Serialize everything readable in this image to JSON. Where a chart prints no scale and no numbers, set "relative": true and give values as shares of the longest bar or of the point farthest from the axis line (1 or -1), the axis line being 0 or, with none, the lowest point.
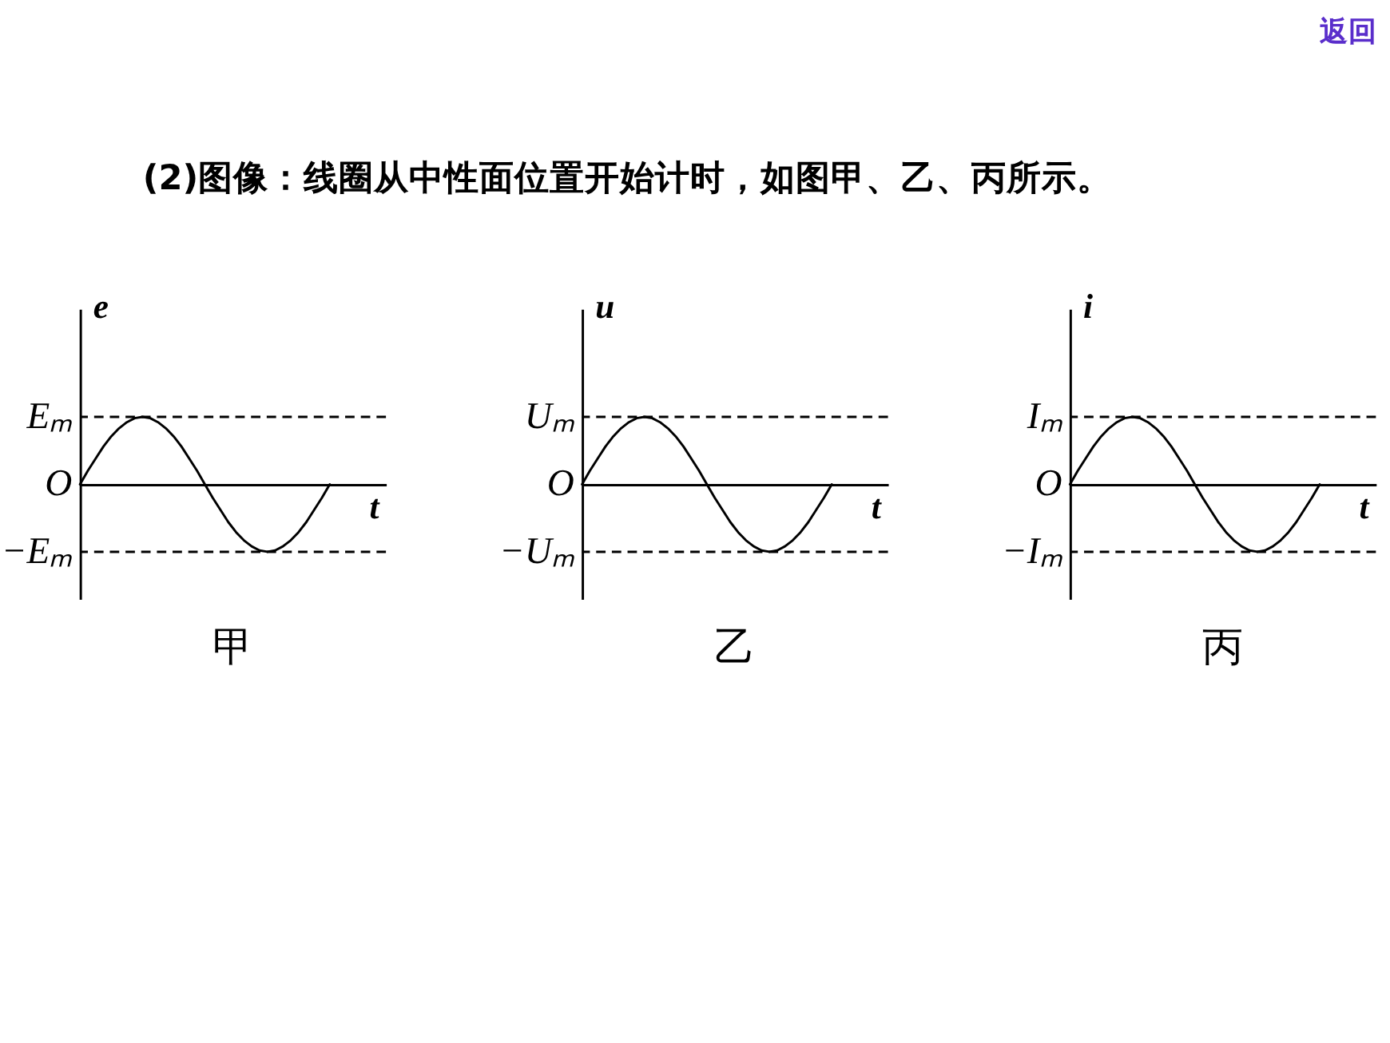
{
  "chart_data": [
    {
      "type": "line",
      "title": "甲",
      "ylabel": "e",
      "xlabel": "t",
      "relative": true,
      "annotations": [
        "(2)图像：线圈从中性面位置开始计时，如图甲、乙、丙所示。",
        "返回",
        "O"
      ],
      "categories": [
        null,
        null,
        null,
        null,
        null,
        null,
        null,
        null,
        null,
        null,
        null,
        null,
        null,
        null,
        null,
        null,
        null,
        null,
        null,
        null,
        null,
        null,
        null,
        null,
        null,
        null,
        null,
        null,
        null,
        null,
        null,
        null,
        null
      ],
      "series": [
        {
          "color": "#000000",
          "values": [
            0,
            0.2,
            0.38,
            0.56,
            0.71,
            0.83,
            0.92,
            0.98,
            1,
            0.98,
            0.92,
            0.83,
            0.71,
            0.56,
            0.38,
            0.2,
            0,
            -0.2,
            -0.38,
            -0.56,
            -0.71,
            -0.83,
            -0.92,
            -0.98,
            -1,
            -0.98,
            -0.92,
            -0.83,
            -0.71,
            -0.56,
            -0.38,
            -0.2,
            0
          ]
        }
      ],
      "ref_lines": [
        {
          "axis": "y",
          "value": 1,
          "label": "Eₘ",
          "line_style": "dashed",
          "color": "#000000"
        },
        {
          "axis": "y",
          "value": -1,
          "label": "−Eₘ",
          "line_style": "dashed",
          "color": "#000000"
        }
      ],
      "line_style": "solid"
    },
    {
      "type": "line",
      "title": "乙",
      "ylabel": "u",
      "xlabel": "t",
      "relative": true,
      "annotations": [
        "O"
      ],
      "categories": [
        null,
        null,
        null,
        null,
        null,
        null,
        null,
        null,
        null,
        null,
        null,
        null,
        null,
        null,
        null,
        null,
        null,
        null,
        null,
        null,
        null,
        null,
        null,
        null,
        null,
        null,
        null,
        null,
        null,
        null,
        null,
        null,
        null
      ],
      "series": [
        {
          "color": "#000000",
          "values": [
            0,
            0.2,
            0.38,
            0.56,
            0.71,
            0.83,
            0.92,
            0.98,
            1,
            0.98,
            0.92,
            0.83,
            0.71,
            0.56,
            0.38,
            0.2,
            0,
            -0.2,
            -0.38,
            -0.56,
            -0.71,
            -0.83,
            -0.92,
            -0.98,
            -1,
            -0.98,
            -0.92,
            -0.83,
            -0.71,
            -0.56,
            -0.38,
            -0.2,
            0
          ]
        }
      ],
      "ref_lines": [
        {
          "axis": "y",
          "value": 1,
          "label": "Uₘ",
          "line_style": "dashed",
          "color": "#000000"
        },
        {
          "axis": "y",
          "value": -1,
          "label": "−Uₘ",
          "line_style": "dashed",
          "color": "#000000"
        }
      ],
      "line_style": "solid"
    },
    {
      "type": "line",
      "title": "丙",
      "ylabel": "i",
      "xlabel": "t",
      "relative": true,
      "annotations": [
        "O"
      ],
      "categories": [
        null,
        null,
        null,
        null,
        null,
        null,
        null,
        null,
        null,
        null,
        null,
        null,
        null,
        null,
        null,
        null,
        null,
        null,
        null,
        null,
        null,
        null,
        null,
        null,
        null,
        null,
        null,
        null,
        null,
        null,
        null,
        null,
        null
      ],
      "series": [
        {
          "color": "#000000",
          "values": [
            0,
            0.2,
            0.38,
            0.56,
            0.71,
            0.83,
            0.92,
            0.98,
            1,
            0.98,
            0.92,
            0.83,
            0.71,
            0.56,
            0.38,
            0.2,
            0,
            -0.2,
            -0.38,
            -0.56,
            -0.71,
            -0.83,
            -0.92,
            -0.98,
            -1,
            -0.98,
            -0.92,
            -0.83,
            -0.71,
            -0.56,
            -0.38,
            -0.2,
            0
          ]
        }
      ],
      "ref_lines": [
        {
          "axis": "y",
          "value": 1,
          "label": "Iₘ",
          "line_style": "dashed",
          "color": "#000000"
        },
        {
          "axis": "y",
          "value": -1,
          "label": "−Iₘ",
          "line_style": "dashed",
          "color": "#000000"
        }
      ],
      "line_style": "solid"
    }
  ]
}
